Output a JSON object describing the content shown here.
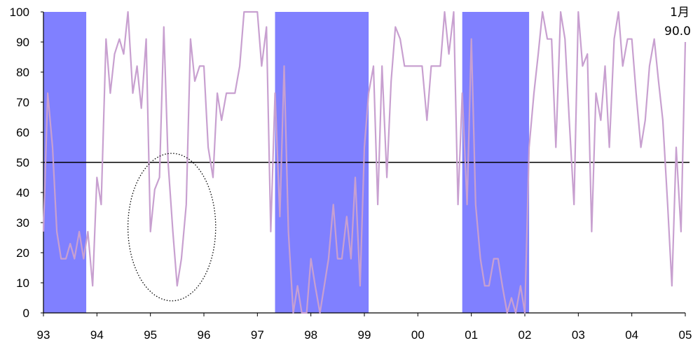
{
  "chart_data": {
    "type": "line",
    "title": "",
    "xlabel": "",
    "ylabel": "",
    "ylim": [
      0,
      100
    ],
    "yticks": [
      0,
      10,
      20,
      30,
      40,
      50,
      60,
      70,
      80,
      90,
      100
    ],
    "xlim": [
      1993.0,
      2005.0
    ],
    "xtick_labels": [
      "93",
      "94",
      "95",
      "96",
      "97",
      "98",
      "99",
      "00",
      "01",
      "02",
      "03",
      "04",
      "05"
    ],
    "reference_line_y": 50,
    "colors": {
      "line": "#c8a0d0",
      "shade": "#8080ff",
      "reference": "#000000"
    },
    "shaded_periods": [
      {
        "start": 1993.0,
        "end": 1993.8
      },
      {
        "start": 1997.33,
        "end": 1999.08
      },
      {
        "start": 2000.83,
        "end": 2002.08
      }
    ],
    "ellipse_annotation": {
      "center_x": 1995.4,
      "center_y": 28.5,
      "rx": 0.82,
      "ry": 24.5
    },
    "annotation_lines": [
      "1月",
      "90.0"
    ],
    "series": [
      {
        "x": [
          1993.0,
          1993.08,
          1993.17,
          1993.25,
          1993.33,
          1993.42,
          1993.5,
          1993.58,
          1993.67,
          1993.75,
          1993.83,
          1993.92,
          1994.0,
          1994.08,
          1994.17,
          1994.25,
          1994.33,
          1994.42,
          1994.5,
          1994.58,
          1994.67,
          1994.75,
          1994.83,
          1994.92,
          1995.0,
          1995.08,
          1995.17,
          1995.25,
          1995.33,
          1995.42,
          1995.5,
          1995.58,
          1995.67,
          1995.75,
          1995.83,
          1995.92,
          1996.0,
          1996.08,
          1996.17,
          1996.25,
          1996.33,
          1996.42,
          1996.5,
          1996.58,
          1996.67,
          1996.75,
          1996.83,
          1996.92,
          1997.0,
          1997.08,
          1997.17,
          1997.25,
          1997.33,
          1997.42,
          1997.5,
          1997.58,
          1997.67,
          1997.75,
          1997.83,
          1997.92,
          1998.0,
          1998.08,
          1998.17,
          1998.25,
          1998.33,
          1998.42,
          1998.5,
          1998.58,
          1998.67,
          1998.75,
          1998.83,
          1998.92,
          1999.0,
          1999.08,
          1999.17,
          1999.25,
          1999.33,
          1999.42,
          1999.5,
          1999.58,
          1999.67,
          1999.75,
          1999.83,
          1999.92,
          2000.0,
          2000.08,
          2000.17,
          2000.25,
          2000.33,
          2000.42,
          2000.5,
          2000.58,
          2000.67,
          2000.75,
          2000.83,
          2000.92,
          2001.0,
          2001.08,
          2001.17,
          2001.25,
          2001.33,
          2001.42,
          2001.5,
          2001.58,
          2001.67,
          2001.75,
          2001.83,
          2001.92,
          2002.0,
          2002.08,
          2002.17,
          2002.25,
          2002.33,
          2002.42,
          2002.5,
          2002.58,
          2002.67,
          2002.75,
          2002.83,
          2002.92,
          2003.0,
          2003.08,
          2003.17,
          2003.25,
          2003.33,
          2003.42,
          2003.5,
          2003.58,
          2003.67,
          2003.75,
          2003.83,
          2003.92,
          2004.0,
          2004.08,
          2004.17,
          2004.25,
          2004.33,
          2004.42,
          2004.5,
          2004.58,
          2004.67,
          2004.75,
          2004.83,
          2004.92,
          2005.0
        ],
        "values": [
          27,
          73,
          55,
          27,
          18,
          18,
          23,
          18,
          27,
          18,
          27,
          9,
          45,
          36,
          91,
          73,
          86,
          91,
          86,
          100,
          73,
          82,
          68,
          91,
          27,
          41,
          45,
          95,
          50,
          27,
          9,
          18,
          36,
          91,
          77,
          82,
          82,
          55,
          45,
          73,
          64,
          73,
          73,
          73,
          82,
          100,
          100,
          100,
          100,
          82,
          95,
          27,
          73,
          32,
          82,
          27,
          0,
          9,
          0,
          0,
          18,
          9,
          0,
          9,
          18,
          36,
          18,
          18,
          32,
          18,
          45,
          9,
          55,
          73,
          82,
          36,
          82,
          45,
          77,
          95,
          91,
          82,
          82,
          82,
          82,
          82,
          64,
          82,
          82,
          82,
          100,
          86,
          100,
          36,
          73,
          36,
          91,
          36,
          18,
          9,
          9,
          18,
          18,
          9,
          0,
          5,
          0,
          9,
          0,
          55,
          73,
          86,
          100,
          91,
          91,
          55,
          100,
          91,
          64,
          36,
          100,
          82,
          86,
          27,
          73,
          64,
          82,
          55,
          91,
          100,
          82,
          91,
          91,
          73,
          55,
          64,
          82,
          91,
          77,
          64,
          36,
          9,
          55,
          27,
          90
        ]
      }
    ]
  }
}
